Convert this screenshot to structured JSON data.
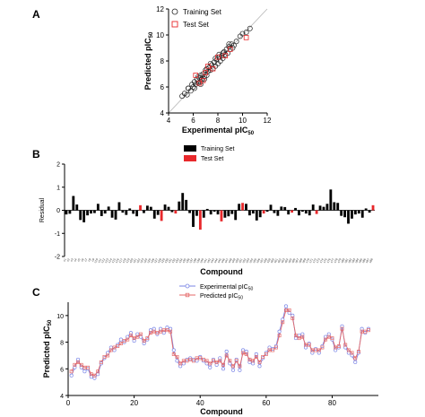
{
  "panels": {
    "A": {
      "letter": "A"
    },
    "B": {
      "letter": "B"
    },
    "C": {
      "letter": "C"
    }
  },
  "colors": {
    "training": "#000000",
    "test": "#e8282b",
    "exp_line": "#7b86e6",
    "pred_line": "#e46a6a",
    "identity": "#b5b5b5"
  },
  "chart_data": [
    {
      "id": "A",
      "type": "scatter",
      "xlabel_main": "Experimental pIC",
      "xlabel_sub": "50",
      "ylabel_main": "Predicted pIC",
      "ylabel_sub": "50",
      "xlim": [
        4,
        12
      ],
      "ylim": [
        4,
        12
      ],
      "xticks": [
        "4",
        "6",
        "8",
        "10",
        "12"
      ],
      "yticks": [
        "4",
        "6",
        "8",
        "10",
        "12"
      ],
      "legend": [
        "Training Set",
        "Test Set"
      ],
      "legend_position": "top-left",
      "identity_line": true,
      "series": [
        {
          "name": "Training Set",
          "marker": "circle",
          "x": [
            5.1,
            5.3,
            5.5,
            5.6,
            5.8,
            5.9,
            6.0,
            6.1,
            6.1,
            6.2,
            6.3,
            6.4,
            6.5,
            6.6,
            6.6,
            6.7,
            6.8,
            6.9,
            7.0,
            7.1,
            7.1,
            7.2,
            7.3,
            7.4,
            7.5,
            7.6,
            7.7,
            7.8,
            7.9,
            8.0,
            8.1,
            8.2,
            8.3,
            8.4,
            8.5,
            8.6,
            8.7,
            8.8,
            8.9,
            9.0,
            9.1,
            9.3,
            9.5,
            9.8,
            10.0,
            10.3,
            10.6,
            6.4,
            6.9,
            7.4,
            8.4,
            8.9,
            7.8,
            6.6,
            8.1,
            9.2,
            5.6,
            7.0
          ],
          "y": [
            5.3,
            5.5,
            5.4,
            5.9,
            5.7,
            6.2,
            6.0,
            6.4,
            5.9,
            6.2,
            6.6,
            6.3,
            6.7,
            6.4,
            6.9,
            6.6,
            7.0,
            6.8,
            7.1,
            6.9,
            7.4,
            7.2,
            7.5,
            7.3,
            7.7,
            7.4,
            7.9,
            7.6,
            8.1,
            7.8,
            8.3,
            8.0,
            8.4,
            8.2,
            8.7,
            8.5,
            8.9,
            8.6,
            9.1,
            8.9,
            9.3,
            9.2,
            9.5,
            9.9,
            10.1,
            10.2,
            10.5,
            6.8,
            6.6,
            7.8,
            8.6,
            9.3,
            8.2,
            6.2,
            8.5,
            9.0,
            5.9,
            7.3
          ]
        },
        {
          "name": "Test Set",
          "marker": "square",
          "x": [
            6.2,
            6.8,
            7.2,
            7.6,
            8.0,
            8.6,
            6.5,
            7.0,
            9.0,
            10.3
          ],
          "y": [
            6.9,
            6.5,
            7.6,
            7.4,
            8.3,
            8.4,
            6.3,
            7.1,
            8.9,
            9.8
          ]
        }
      ]
    },
    {
      "id": "B",
      "type": "bar",
      "xlabel": "Compound",
      "ylabel": "Residual",
      "ylim": [
        -2,
        2
      ],
      "yticks": [
        "-2",
        "-1",
        "0",
        "1",
        "2"
      ],
      "legend": [
        "Training Set",
        "Test Set"
      ],
      "legend_position": "top-center",
      "categories_count": 88,
      "values": [
        -0.18,
        -0.15,
        0.62,
        0.25,
        -0.42,
        -0.52,
        -0.22,
        -0.14,
        -0.12,
        0.28,
        -0.25,
        -0.14,
        0.16,
        -0.32,
        -0.4,
        0.35,
        -0.1,
        -0.2,
        0.08,
        -0.15,
        -0.26,
        0.22,
        -0.12,
        0.2,
        0.15,
        -0.36,
        -0.2,
        -0.46,
        0.25,
        0.15,
        -0.08,
        -0.14,
        0.38,
        0.75,
        0.45,
        -0.12,
        -0.72,
        -0.24,
        -0.84,
        -0.32,
        0.06,
        -0.18,
        -0.06,
        -0.18,
        -0.48,
        -0.32,
        -0.26,
        -0.16,
        -0.42,
        0.28,
        0.32,
        0.28,
        -0.22,
        -0.14,
        -0.44,
        -0.3,
        -0.14,
        -0.06,
        0.24,
        -0.12,
        -0.24,
        0.16,
        0.14,
        -0.18,
        -0.1,
        0.1,
        -0.22,
        -0.06,
        -0.14,
        -0.22,
        0.25,
        -0.16,
        0.2,
        0.15,
        0.28,
        0.9,
        0.35,
        0.32,
        -0.24,
        -0.3,
        -0.58,
        -0.36,
        -0.18,
        -0.14,
        -0.32,
        0.08,
        -0.1,
        0.22
      ],
      "test_indices": [
        21,
        27,
        31,
        38,
        44,
        50,
        56,
        64,
        71,
        87
      ]
    },
    {
      "id": "C",
      "type": "line",
      "xlabel": "Compound",
      "ylabel": "Predicted pIC",
      "ylabel_sub": "50",
      "xlim": [
        0,
        94
      ],
      "ylim": [
        4,
        11
      ],
      "xticks": [
        "0",
        "20",
        "40",
        "60",
        "80"
      ],
      "yticks": [
        "4",
        "6",
        "8",
        "10"
      ],
      "legend_position": "top-center",
      "series": [
        {
          "name": "Experimental pIC",
          "name_sub": "50",
          "marker": "circle",
          "values": [
            5.5,
            6.1,
            6.7,
            6.1,
            5.8,
            6.0,
            5.4,
            5.3,
            5.6,
            6.4,
            6.8,
            7.2,
            7.6,
            7.4,
            7.8,
            8.2,
            8.0,
            8.4,
            8.7,
            8.1,
            8.6,
            8.4,
            7.9,
            8.2,
            8.9,
            9.0,
            8.6,
            9.0,
            8.7,
            9.1,
            9.0,
            7.4,
            6.6,
            6.2,
            6.4,
            6.7,
            6.8,
            6.7,
            6.6,
            6.9,
            6.6,
            6.4,
            6.1,
            6.7,
            6.3,
            6.8,
            6.0,
            7.3,
            6.4,
            5.9,
            6.7,
            5.9,
            7.4,
            7.3,
            6.5,
            6.4,
            7.1,
            6.2,
            6.8,
            7.2,
            7.6,
            7.5,
            7.7,
            8.8,
            9.7,
            10.7,
            10.2,
            10.0,
            8.3,
            8.5,
            8.6,
            7.6,
            7.9,
            7.2,
            7.5,
            7.2,
            7.7,
            8.4,
            8.6,
            8.2,
            7.4,
            7.6,
            9.2,
            7.6,
            7.2,
            7.0,
            6.5,
            7.2,
            9.0,
            8.7,
            9.0
          ],
          "color": "#7b86e6"
        },
        {
          "name": "Predicted pIC",
          "name_sub": "50",
          "marker": "square",
          "values": [
            5.8,
            6.3,
            6.5,
            6.3,
            6.1,
            6.1,
            5.6,
            5.5,
            5.8,
            6.5,
            6.9,
            7.0,
            7.4,
            7.6,
            7.7,
            7.9,
            8.1,
            8.2,
            8.5,
            8.3,
            8.4,
            8.6,
            8.1,
            8.3,
            8.7,
            8.8,
            8.7,
            8.8,
            8.9,
            8.9,
            8.8,
            7.1,
            6.9,
            6.4,
            6.6,
            6.6,
            6.7,
            6.6,
            6.8,
            6.8,
            6.7,
            6.6,
            6.4,
            6.6,
            6.5,
            6.6,
            6.3,
            7.0,
            6.6,
            6.2,
            6.6,
            6.2,
            7.2,
            7.1,
            6.7,
            6.6,
            6.9,
            6.5,
            6.9,
            7.1,
            7.4,
            7.4,
            7.6,
            8.5,
            9.5,
            10.4,
            10.4,
            9.8,
            8.5,
            8.3,
            8.4,
            7.8,
            7.8,
            7.4,
            7.4,
            7.4,
            7.6,
            8.2,
            8.4,
            8.3,
            7.6,
            7.7,
            9.0,
            7.8,
            7.4,
            7.2,
            6.8,
            7.3,
            8.8,
            8.8,
            8.9
          ],
          "color": "#e46a6a"
        }
      ]
    }
  ]
}
